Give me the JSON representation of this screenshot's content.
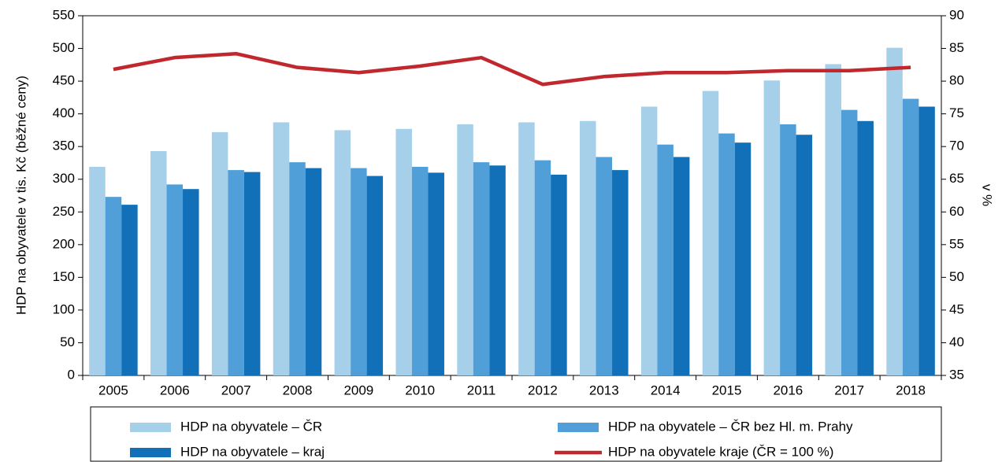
{
  "chart_data": {
    "type": "bar",
    "categories": [
      "2005",
      "2006",
      "2007",
      "2008",
      "2009",
      "2010",
      "2011",
      "2012",
      "2013",
      "2014",
      "2015",
      "2016",
      "2017",
      "2018"
    ],
    "series": [
      {
        "name": "HDP na obyvatele – ČR",
        "color": "#a6cfea",
        "values": [
          319,
          343,
          372,
          387,
          375,
          377,
          384,
          387,
          389,
          411,
          435,
          451,
          476,
          501
        ]
      },
      {
        "name": "HDP na obyvatele – ČR bez Hl. m. Prahy",
        "color": "#519fd9",
        "values": [
          273,
          292,
          314,
          326,
          317,
          319,
          326,
          329,
          334,
          353,
          370,
          384,
          406,
          423
        ]
      },
      {
        "name": "HDP na obyvatele – kraj",
        "color": "#1170b8",
        "values": [
          261,
          285,
          311,
          317,
          305,
          310,
          321,
          307,
          314,
          334,
          356,
          368,
          389,
          411
        ]
      },
      {
        "name": "HDP na obyvatele kraje (ČR = 100 %)",
        "color": "#c0282d",
        "type": "line",
        "axis": "y2",
        "values": [
          81.8,
          83.6,
          84.2,
          82.1,
          81.3,
          82.3,
          83.6,
          79.5,
          80.7,
          81.3,
          81.3,
          81.6,
          81.6,
          82.1
        ]
      }
    ],
    "ylabel": "HDP na obyvatele v tis. Kč (běžné ceny)",
    "y2label": "v %",
    "ylim": [
      0,
      550
    ],
    "yticks": [
      0,
      50,
      100,
      150,
      200,
      250,
      300,
      350,
      400,
      450,
      500,
      550
    ],
    "y2lim": [
      35,
      90
    ],
    "y2ticks": [
      35,
      40,
      45,
      50,
      55,
      60,
      65,
      70,
      75,
      80,
      85,
      90
    ],
    "grid": false,
    "legend": "bottom"
  }
}
